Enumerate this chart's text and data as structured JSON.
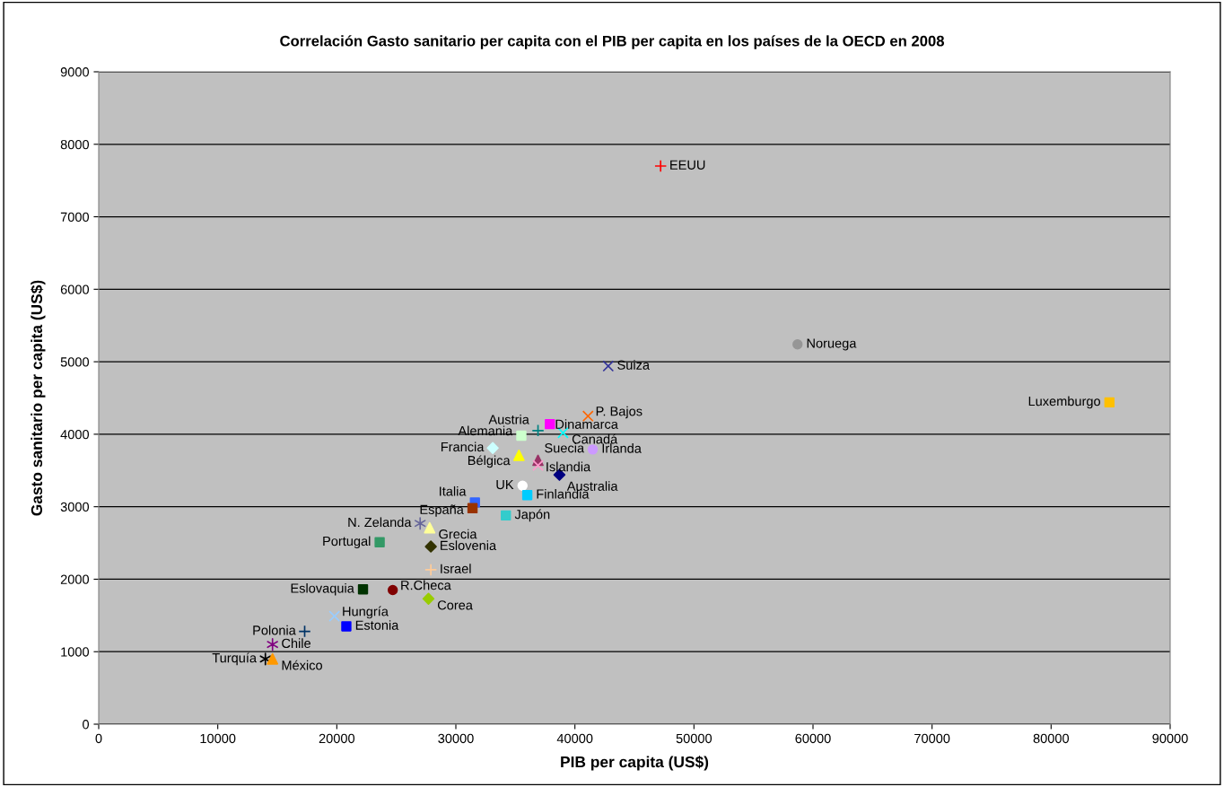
{
  "chart_data": {
    "type": "scatter",
    "title": "Correlación Gasto sanitario per capita con el PIB per capita en los países de la OECD en 2008",
    "xlabel": "PIB per capita (US$)",
    "ylabel": "Gasto sanitario per capita (US$)",
    "xlim": [
      0,
      90000
    ],
    "xticks": [
      0,
      10000,
      20000,
      30000,
      40000,
      50000,
      60000,
      70000,
      80000,
      90000
    ],
    "ylim": [
      0,
      9000
    ],
    "yticks": [
      0,
      1000,
      2000,
      3000,
      4000,
      5000,
      6000,
      7000,
      8000,
      9000
    ],
    "grid": "y",
    "series": [
      {
        "name": "EEUU",
        "color": "#ff0000",
        "marker": "plus",
        "x": [
          47200
        ],
        "values": [
          7700
        ]
      },
      {
        "name": "Noruega",
        "color": "#969696",
        "marker": "circle",
        "x": [
          58700
        ],
        "values": [
          5240
        ]
      },
      {
        "name": "Suiza",
        "color": "#333399",
        "marker": "x",
        "x": [
          42800
        ],
        "values": [
          4940
        ]
      },
      {
        "name": "Luxemburgo",
        "color": "#ffc000",
        "marker": "square",
        "x": [
          84900
        ],
        "values": [
          4440
        ]
      },
      {
        "name": "P. Bajos",
        "color": "#ff6600",
        "marker": "x",
        "x": [
          41100
        ],
        "values": [
          4250
        ]
      },
      {
        "name": "Austria",
        "color": "#008080",
        "marker": "plus",
        "x": [
          36900
        ],
        "values": [
          4050
        ]
      },
      {
        "name": "Dinamarca",
        "color": "#ff00ff",
        "marker": "square",
        "x": [
          37900
        ],
        "values": [
          4140
        ]
      },
      {
        "name": "Canadá",
        "color": "#00ffff",
        "marker": "x",
        "x": [
          39000
        ],
        "values": [
          4020
        ]
      },
      {
        "name": "Alemania",
        "color": "#ccffcc",
        "marker": "square",
        "x": [
          35500
        ],
        "values": [
          3980
        ]
      },
      {
        "name": "Francia",
        "color": "#ccffff",
        "marker": "diamond",
        "x": [
          33100
        ],
        "values": [
          3810
        ]
      },
      {
        "name": "Bélgica",
        "color": "#ffff00",
        "marker": "triangle",
        "x": [
          35300
        ],
        "values": [
          3710
        ]
      },
      {
        "name": "Irlanda",
        "color": "#cc99ff",
        "marker": "circle",
        "x": [
          41500
        ],
        "values": [
          3790
        ]
      },
      {
        "name": "Suecia",
        "color": "#993366",
        "marker": "triangle",
        "x": [
          36900
        ],
        "values": [
          3640
        ]
      },
      {
        "name": "Islandia",
        "color": "#ff99cc",
        "marker": "x",
        "x": [
          36900
        ],
        "values": [
          3570
        ]
      },
      {
        "name": "Australia",
        "color": "#000080",
        "marker": "diamond",
        "x": [
          38700
        ],
        "values": [
          3440
        ]
      },
      {
        "name": "UK",
        "color": "#ffffff",
        "marker": "circle",
        "x": [
          35600
        ],
        "values": [
          3290
        ]
      },
      {
        "name": "Finlandia",
        "color": "#00ccff",
        "marker": "square",
        "x": [
          36000
        ],
        "values": [
          3160
        ]
      },
      {
        "name": "Italia",
        "color": "#3366ff",
        "marker": "square",
        "x": [
          31600
        ],
        "values": [
          3060
        ]
      },
      {
        "name": "España",
        "color": "#993300",
        "marker": "square",
        "x": [
          31400
        ],
        "values": [
          2980
        ]
      },
      {
        "name": "Japón",
        "color": "#33cccc",
        "marker": "square",
        "x": [
          34200
        ],
        "values": [
          2880
        ]
      },
      {
        "name": "N. Zelanda",
        "color": "#666699",
        "marker": "cross",
        "x": [
          27000
        ],
        "values": [
          2770
        ]
      },
      {
        "name": "Grecia",
        "color": "#ffff99",
        "marker": "triangle",
        "x": [
          27800
        ],
        "values": [
          2710
        ]
      },
      {
        "name": "Portugal",
        "color": "#339966",
        "marker": "square",
        "x": [
          23600
        ],
        "values": [
          2510
        ]
      },
      {
        "name": "Eslovenia",
        "color": "#333300",
        "marker": "diamond",
        "x": [
          27900
        ],
        "values": [
          2450
        ]
      },
      {
        "name": "Israel",
        "color": "#ffcc99",
        "marker": "plus",
        "x": [
          27900
        ],
        "values": [
          2130
        ]
      },
      {
        "name": "Eslovaquia",
        "color": "#003300",
        "marker": "square",
        "x": [
          22200
        ],
        "values": [
          1860
        ]
      },
      {
        "name": "R.Checa",
        "color": "#800000",
        "marker": "circle",
        "x": [
          24700
        ],
        "values": [
          1850
        ]
      },
      {
        "name": "Corea",
        "color": "#99cc00",
        "marker": "diamond",
        "x": [
          27700
        ],
        "values": [
          1730
        ]
      },
      {
        "name": "Hungría",
        "color": "#99ccff",
        "marker": "x",
        "x": [
          19800
        ],
        "values": [
          1490
        ]
      },
      {
        "name": "Estonia",
        "color": "#0000ff",
        "marker": "square",
        "x": [
          20800
        ],
        "values": [
          1350
        ]
      },
      {
        "name": "Polonia",
        "color": "#003366",
        "marker": "plus",
        "x": [
          17300
        ],
        "values": [
          1280
        ]
      },
      {
        "name": "Chile",
        "color": "#800080",
        "marker": "cross",
        "x": [
          14600
        ],
        "values": [
          1100
        ]
      },
      {
        "name": "Turquía",
        "color": "#000000",
        "marker": "cross",
        "x": [
          14000
        ],
        "values": [
          900
        ]
      },
      {
        "name": "México",
        "color": "#ff9900",
        "marker": "triangle",
        "x": [
          14600
        ],
        "values": [
          900
        ]
      }
    ]
  }
}
